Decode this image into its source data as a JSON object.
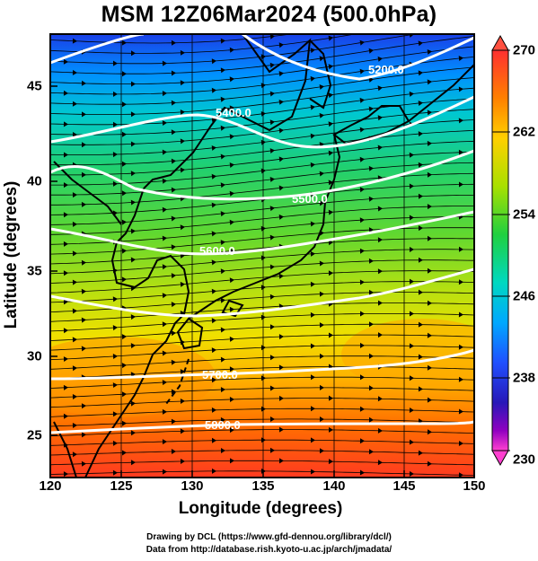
{
  "title": "MSM 12Z06Mar2024 (500.0hPa)",
  "axes": {
    "xlabel": "Longitude (degrees)",
    "ylabel": "Latitude  (degrees)",
    "x_ticks": [
      "120",
      "125",
      "130",
      "135",
      "140",
      "145",
      "150"
    ],
    "y_ticks": [
      "25",
      "30",
      "35",
      "40",
      "45"
    ]
  },
  "colorbar": {
    "ticks": [
      "270",
      "262",
      "254",
      "246",
      "238",
      "230"
    ],
    "colors": [
      "#ff4040",
      "#ff9900",
      "#ffd000",
      "#b0e000",
      "#30d040",
      "#00d8b0",
      "#00b0ff",
      "#2060ff",
      "#2020c8",
      "#9000c0",
      "#ff40d0"
    ]
  },
  "contours": {
    "labels": [
      "5200.0",
      "5400.0",
      "5500.0",
      "5600.0",
      "5700.0",
      "5800.0"
    ]
  },
  "credits": {
    "line1": "Drawing by DCL (https://www.gfd-dennou.org/library/dcl/)",
    "line2": "Data from http://database.rish.kyoto-u.ac.jp/arch/jmadata/"
  }
}
